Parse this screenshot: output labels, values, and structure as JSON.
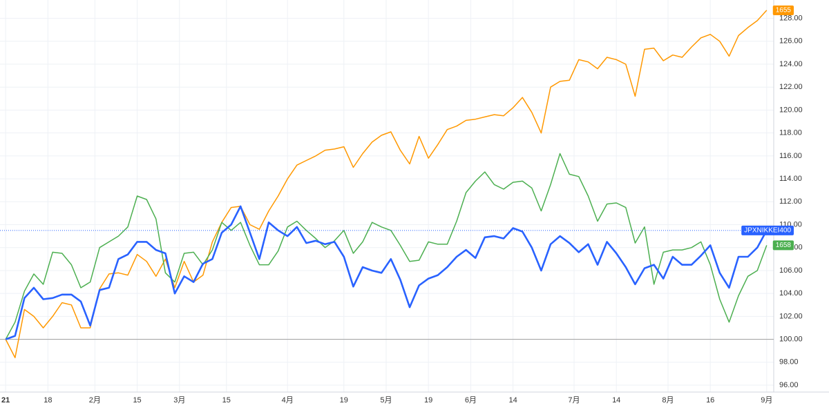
{
  "chart_data": {
    "type": "line",
    "x": [
      0,
      2,
      4,
      6,
      8,
      10,
      12,
      14,
      16,
      18,
      20,
      22,
      24,
      26,
      28,
      30,
      32,
      34,
      36,
      38,
      40,
      42,
      44,
      46,
      48,
      50,
      52,
      54,
      56,
      58,
      60,
      62,
      64,
      66,
      68,
      70,
      72,
      74,
      76,
      78,
      80,
      82,
      84,
      86,
      88,
      90,
      92,
      94,
      96,
      98,
      100,
      102,
      104,
      106,
      108,
      110,
      112,
      114,
      116,
      118,
      120,
      122,
      124,
      126,
      128,
      130,
      132,
      134,
      136,
      138,
      140,
      142,
      144,
      146,
      148,
      150,
      152,
      154,
      156,
      158,
      160,
      162
    ],
    "xlim": [
      -1.2,
      163.5
    ],
    "xticks": [
      {
        "value": 0,
        "label": "21"
      },
      {
        "value": 9,
        "label": "18"
      },
      {
        "value": 19,
        "label": "2月"
      },
      {
        "value": 28,
        "label": "15"
      },
      {
        "value": 37,
        "label": "3月"
      },
      {
        "value": 47,
        "label": "15"
      },
      {
        "value": 60,
        "label": "4月"
      },
      {
        "value": 72,
        "label": "19"
      },
      {
        "value": 81,
        "label": "5月"
      },
      {
        "value": 90,
        "label": "19"
      },
      {
        "value": 99,
        "label": "6月"
      },
      {
        "value": 108,
        "label": "14"
      },
      {
        "value": 121,
        "label": "7月"
      },
      {
        "value": 130,
        "label": "14"
      },
      {
        "value": 141,
        "label": "8月"
      },
      {
        "value": 150,
        "label": "16"
      },
      {
        "value": 162,
        "label": "9月"
      }
    ],
    "ylim": [
      95.4,
      129.6
    ],
    "yticks": [
      {
        "value": 96,
        "label": "96.00"
      },
      {
        "value": 98,
        "label": "98.00"
      },
      {
        "value": 100,
        "label": "100.00"
      },
      {
        "value": 102,
        "label": "102.00"
      },
      {
        "value": 104,
        "label": "104.00"
      },
      {
        "value": 106,
        "label": "106.00"
      },
      {
        "value": 108,
        "label": "108.00"
      },
      {
        "value": 110,
        "label": "110.00"
      },
      {
        "value": 112,
        "label": "112.00"
      },
      {
        "value": 114,
        "label": "114.00"
      },
      {
        "value": 116,
        "label": "116.00"
      },
      {
        "value": 118,
        "label": "118.00"
      },
      {
        "value": 120,
        "label": "120.00"
      },
      {
        "value": 122,
        "label": "122.00"
      },
      {
        "value": 124,
        "label": "124.00"
      },
      {
        "value": 126,
        "label": "126.00"
      },
      {
        "value": 128,
        "label": "128.00"
      }
    ],
    "grid": true,
    "baseline": 100,
    "series": [
      {
        "name": "1655",
        "color": "#ff9800",
        "values": [
          100,
          98.4,
          102.6,
          102,
          101,
          102,
          103.2,
          103,
          101,
          101,
          104.4,
          105.7,
          105.8,
          105.6,
          107.4,
          106.8,
          105.5,
          107,
          104.5,
          106.8,
          105,
          105.6,
          108.5,
          110.2,
          111.5,
          111.6,
          110,
          109.6,
          111.2,
          112.5,
          114,
          115.2,
          115.6,
          116,
          116.5,
          116.6,
          116.8,
          115,
          116.2,
          117.2,
          117.8,
          118.1,
          116.5,
          115.3,
          117.7,
          115.8,
          117,
          118.3,
          118.6,
          119.1,
          119.2,
          119.4,
          119.6,
          119.5,
          120.2,
          121.1,
          119.8,
          118,
          122,
          122.5,
          122.6,
          124.4,
          124.2,
          123.6,
          124.6,
          124.4,
          124,
          121.2,
          125.3,
          125.4,
          124.3,
          124.8,
          124.6,
          125.5,
          126.3,
          126.6,
          126,
          124.7,
          126.5,
          127.2,
          127.8,
          128.7
        ]
      },
      {
        "name": "1658",
        "color": "#4caf50",
        "values": [
          100,
          101.5,
          104.2,
          105.7,
          104.8,
          107.6,
          107.5,
          106.5,
          104.5,
          105,
          108,
          108.5,
          109,
          109.8,
          112.5,
          112.2,
          110.5,
          105.8,
          105,
          107.5,
          107.6,
          106.5,
          107.8,
          110.2,
          109.5,
          110.2,
          108.2,
          106.5,
          106.5,
          107.7,
          109.8,
          110.3,
          109.5,
          108.8,
          108,
          108.6,
          109.5,
          107.5,
          108.5,
          110.2,
          109.8,
          109.5,
          108.2,
          106.8,
          106.9,
          108.5,
          108.3,
          108.3,
          110.3,
          112.8,
          113.8,
          114.6,
          113.5,
          113.1,
          113.7,
          113.8,
          113.2,
          111.2,
          113.5,
          116.2,
          114.4,
          114.2,
          112.5,
          110.3,
          111.8,
          111.9,
          111.5,
          108.4,
          109.8,
          104.8,
          107.6,
          107.8,
          107.8,
          108,
          108.5,
          106.5,
          103.5,
          101.5,
          103.8,
          105.5,
          106,
          108.2
        ]
      },
      {
        "name": "JPXNIKKEI400",
        "color": "#2962ff",
        "values": [
          100,
          100.3,
          103.6,
          104.5,
          103.5,
          103.6,
          103.9,
          103.9,
          103.3,
          101.2,
          104.3,
          104.5,
          107,
          107.4,
          108.5,
          108.5,
          107.8,
          107.5,
          104,
          105.5,
          105,
          106.6,
          107,
          109.3,
          110,
          111.6,
          109.3,
          107,
          110.2,
          109.5,
          109,
          109.8,
          108.4,
          108.6,
          108.3,
          108.5,
          107.2,
          104.6,
          106.3,
          106,
          105.8,
          107,
          105.2,
          102.8,
          104.7,
          105.3,
          105.6,
          106.3,
          107.2,
          107.8,
          107.1,
          108.9,
          109,
          108.8,
          109.7,
          109.4,
          108,
          106,
          108.3,
          109,
          108.4,
          107.6,
          108.3,
          106.5,
          108.5,
          107.5,
          106.3,
          104.8,
          106.2,
          106.5,
          105.3,
          107.2,
          106.5,
          106.5,
          107.3,
          108.2,
          105.8,
          104.5,
          107.2,
          107.2,
          108,
          109.5
        ]
      }
    ]
  }
}
